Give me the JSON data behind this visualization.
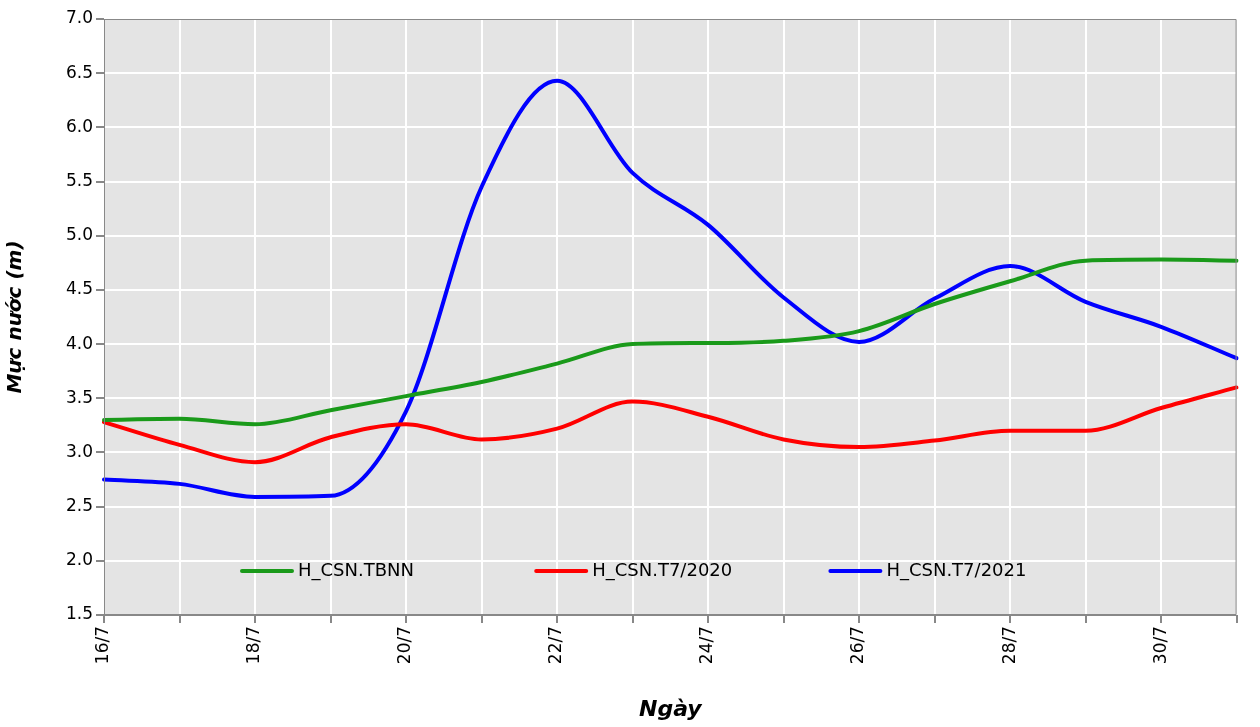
{
  "chart_data": {
    "type": "line",
    "xlabel": "Ngày",
    "ylabel": "Mực nước (m)",
    "categories": [
      "16/7",
      null,
      "18/7",
      null,
      "20/7",
      null,
      "22/7",
      null,
      "24/7",
      null,
      "26/7",
      null,
      "28/7",
      null,
      "30/7",
      null
    ],
    "series": [
      {
        "name": "H_CSN.TBNN",
        "color": "#1a9a1a",
        "values": [
          3.3,
          3.31,
          3.26,
          3.39,
          3.52,
          3.65,
          3.82,
          4.0,
          4.01,
          4.03,
          4.12,
          4.37,
          4.58,
          4.77,
          4.78,
          4.77
        ]
      },
      {
        "name": "H_CSN.T7/2020",
        "color": "#ff0000",
        "values": [
          3.28,
          3.07,
          2.91,
          3.14,
          3.26,
          3.12,
          3.22,
          3.47,
          3.33,
          3.12,
          3.05,
          3.11,
          3.2,
          3.2,
          3.41,
          3.6
        ]
      },
      {
        "name": "H_CSN.T7/2021",
        "color": "#0000ff",
        "values": [
          2.75,
          2.71,
          2.59,
          2.6,
          3.38,
          5.45,
          6.43,
          5.58,
          5.1,
          4.43,
          4.02,
          4.42,
          4.72,
          4.39,
          4.16,
          3.87
        ]
      }
    ],
    "ylim": [
      1.5,
      7.0
    ],
    "yticks": [
      {
        "value": 1.5,
        "label": "1.5"
      },
      {
        "value": 2,
        "label": "2.0"
      },
      {
        "value": 2.5,
        "label": "2.5"
      },
      {
        "value": 3,
        "label": "3.0"
      },
      {
        "value": 3.5,
        "label": "3.5"
      },
      {
        "value": 4,
        "label": "4.0"
      },
      {
        "value": 4.5,
        "label": "4.5"
      },
      {
        "value": 5,
        "label": "5.0"
      },
      {
        "value": 5.5,
        "label": "5.5"
      },
      {
        "value": 6,
        "label": "6.0"
      },
      {
        "value": 6.5,
        "label": "6.5"
      },
      {
        "value": 7,
        "label": "7.0"
      }
    ],
    "grid": true,
    "legend": "bottom",
    "marker": "none",
    "line_style": "solid"
  }
}
